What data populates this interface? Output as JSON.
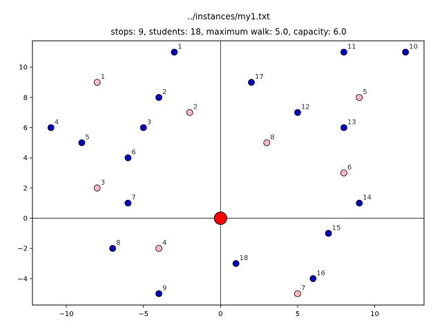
{
  "chart_data": {
    "type": "scatter",
    "title": "../instances/my1.txt",
    "subtitle": "stops: 9, students: 18, maximum walk: 5.0, capacity: 6.0",
    "xlabel": "",
    "ylabel": "",
    "xlim": [
      -12.2,
      13.2
    ],
    "ylim": [
      -5.75,
      11.75
    ],
    "xticks": [
      -10,
      -5,
      0,
      5,
      10
    ],
    "yticks": [
      -4,
      -2,
      0,
      2,
      4,
      6,
      8,
      10
    ],
    "xtick_labels": [
      "−10",
      "−5",
      "0",
      "5",
      "10"
    ],
    "ytick_labels": [
      "−4",
      "−2",
      "0",
      "2",
      "4",
      "6",
      "8",
      "10"
    ],
    "grid": false,
    "reference_lines": {
      "x": 0,
      "y": 0
    },
    "colors": {
      "stop": "#ffb6c1",
      "student": "#0000cd",
      "depot": "#ff0000",
      "edge": "#000000"
    },
    "depot": {
      "x": 0,
      "y": 0
    },
    "stops": [
      {
        "label": "1",
        "x": -8,
        "y": 9
      },
      {
        "label": "2",
        "x": -2,
        "y": 7
      },
      {
        "label": "3",
        "x": -8,
        "y": 2
      },
      {
        "label": "4",
        "x": -4,
        "y": -2
      },
      {
        "label": "5",
        "x": 9,
        "y": 8
      },
      {
        "label": "6",
        "x": 8,
        "y": 3
      },
      {
        "label": "7",
        "x": 5,
        "y": -5
      },
      {
        "label": "8",
        "x": 3,
        "y": 5
      }
    ],
    "students": [
      {
        "label": "1",
        "x": -3,
        "y": 11
      },
      {
        "label": "2",
        "x": -4,
        "y": 8
      },
      {
        "label": "3",
        "x": -5,
        "y": 6
      },
      {
        "label": "4",
        "x": -11,
        "y": 6
      },
      {
        "label": "5",
        "x": -9,
        "y": 5
      },
      {
        "label": "6",
        "x": -6,
        "y": 4
      },
      {
        "label": "7",
        "x": -6,
        "y": 1
      },
      {
        "label": "8",
        "x": -7,
        "y": -2
      },
      {
        "label": "9",
        "x": -4,
        "y": -5
      },
      {
        "label": "10",
        "x": 12,
        "y": 11
      },
      {
        "label": "11",
        "x": 8,
        "y": 11
      },
      {
        "label": "12",
        "x": 5,
        "y": 7
      },
      {
        "label": "13",
        "x": 8,
        "y": 6
      },
      {
        "label": "14",
        "x": 9,
        "y": 1
      },
      {
        "label": "15",
        "x": 7,
        "y": -1
      },
      {
        "label": "16",
        "x": 6,
        "y": -4
      },
      {
        "label": "17",
        "x": 2,
        "y": 9
      },
      {
        "label": "18",
        "x": 1,
        "y": -3
      }
    ]
  }
}
